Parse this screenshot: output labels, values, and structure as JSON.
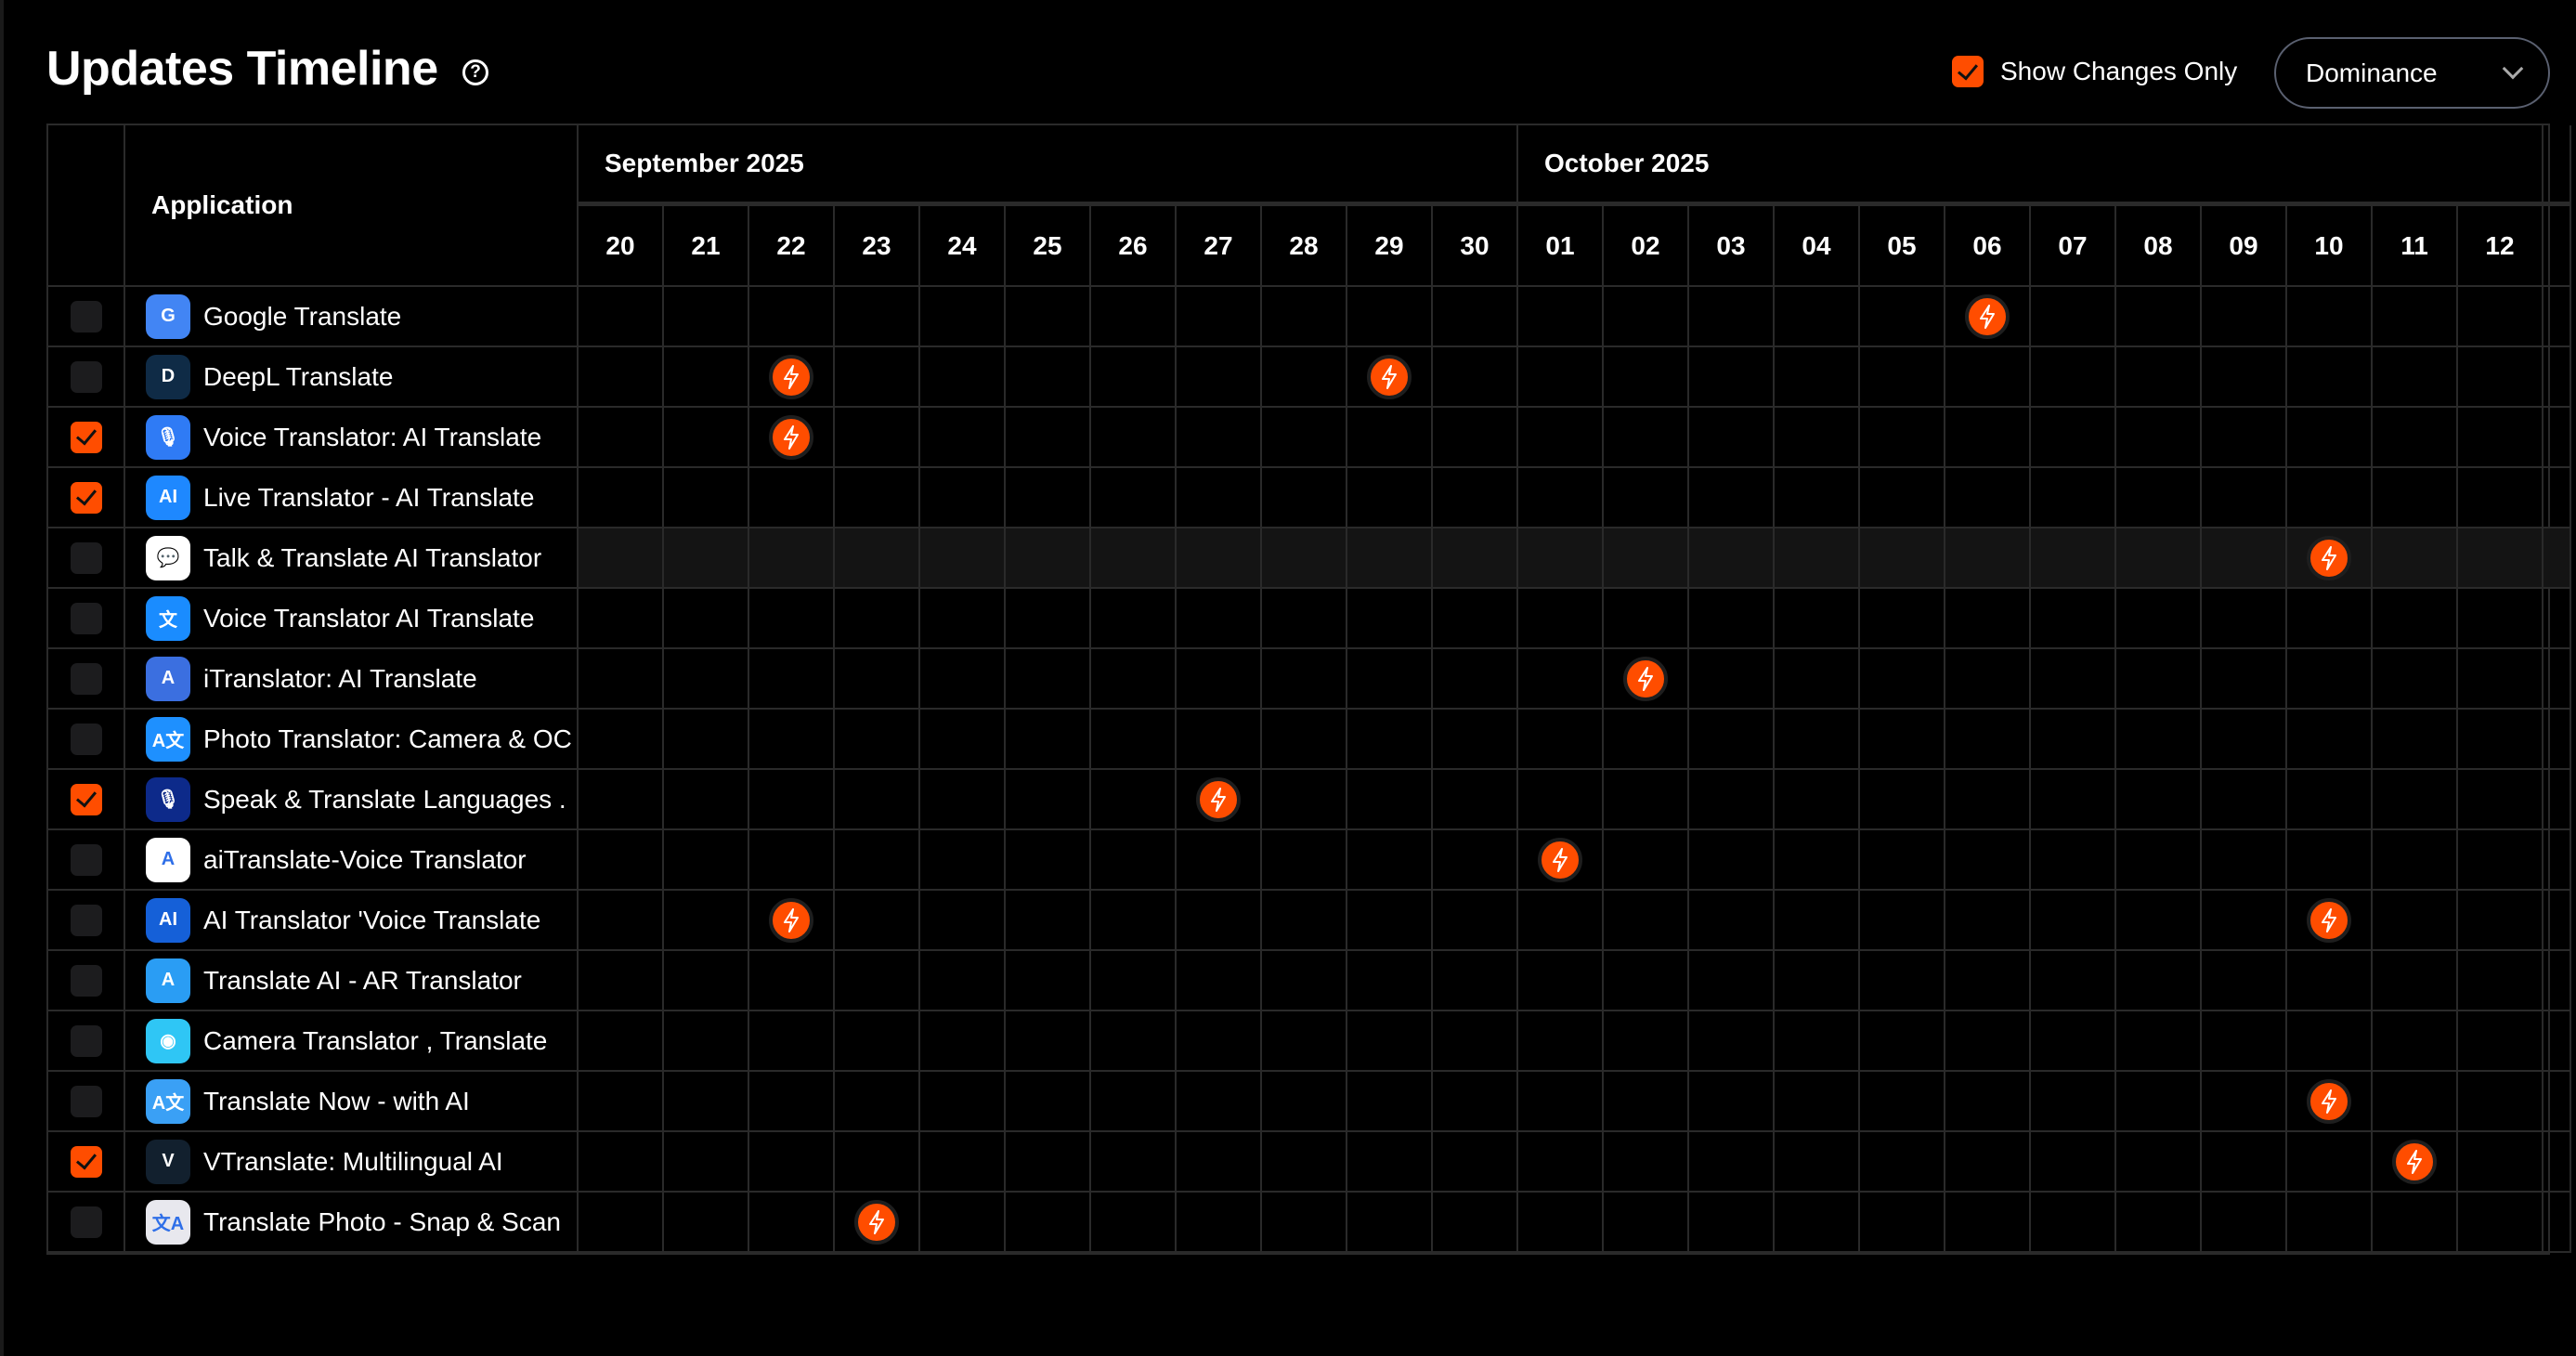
{
  "header": {
    "title": "Updates Timeline",
    "help_icon": "?",
    "show_changes_label": "Show Changes Only",
    "show_changes_checked": true,
    "dropdown_value": "Dominance"
  },
  "colors": {
    "accent": "#ff4d00",
    "grid": "#2a2a2a"
  },
  "table": {
    "app_header": "Application",
    "months": [
      {
        "label": "September 2025",
        "days": 11
      },
      {
        "label": "October 2025",
        "days": 12
      }
    ],
    "days": [
      "20",
      "21",
      "22",
      "23",
      "24",
      "25",
      "26",
      "27",
      "28",
      "29",
      "30",
      "01",
      "02",
      "03",
      "04",
      "05",
      "06",
      "07",
      "08",
      "09",
      "10",
      "11",
      "12"
    ],
    "rows": [
      {
        "name": "Google Translate",
        "checked": false,
        "icon": "G",
        "color": "#4285f4",
        "updates": [
          "06"
        ],
        "month": "Oct"
      },
      {
        "name": "DeepL Translate",
        "checked": false,
        "icon": "D",
        "color": "#0f2b46",
        "updates": [
          "22",
          "29"
        ],
        "month": "Sep"
      },
      {
        "name": "Voice Translator: AI Translate",
        "checked": true,
        "icon": "🎙",
        "color": "#2f7bf5",
        "updates": [
          "22"
        ],
        "month": "Sep"
      },
      {
        "name": "Live Translator - AI Translate",
        "checked": true,
        "icon": "AI",
        "color": "#1e88ff",
        "updates": [],
        "month": ""
      },
      {
        "name": "Talk & Translate AI Translator",
        "checked": false,
        "icon": "💬",
        "color": "#ffffff",
        "updates": [
          "10"
        ],
        "month": "Oct",
        "highlight": true
      },
      {
        "name": "Voice Translator AI Translate",
        "checked": false,
        "icon": "文",
        "color": "#1a8cff",
        "updates": [],
        "month": ""
      },
      {
        "name": "iTranslator: AI Translate",
        "checked": false,
        "icon": "A",
        "color": "#3b6fe0",
        "updates": [
          "02"
        ],
        "month": "Oct"
      },
      {
        "name": "Photo Translator: Camera & OC",
        "checked": false,
        "icon": "A文",
        "color": "#1e90ff",
        "updates": [],
        "month": ""
      },
      {
        "name": "Speak & Translate Languages .",
        "checked": true,
        "icon": "🎙",
        "color": "#0d2a8a",
        "updates": [
          "27"
        ],
        "month": "Sep"
      },
      {
        "name": "aiTranslate-Voice Translator",
        "checked": false,
        "icon": "A",
        "color": "#ffffff",
        "updates": [
          "01"
        ],
        "month": "Oct"
      },
      {
        "name": "AI Translator 'Voice Translate",
        "checked": false,
        "icon": "AI",
        "color": "#1560d8",
        "updates": [
          "22",
          "10"
        ],
        "month": "Sep/Oct"
      },
      {
        "name": "Translate AI - AR Translator",
        "checked": false,
        "icon": "A",
        "color": "#2a9df4",
        "updates": [],
        "month": ""
      },
      {
        "name": "Camera Translator , Translate",
        "checked": false,
        "icon": "◉",
        "color": "#2fc6f5",
        "updates": [],
        "month": ""
      },
      {
        "name": "Translate Now - with AI",
        "checked": false,
        "icon": "A文",
        "color": "#3aa0f5",
        "updates": [
          "10"
        ],
        "month": "Oct"
      },
      {
        "name": "VTranslate: Multilingual AI",
        "checked": true,
        "icon": "V",
        "color": "#12202e",
        "updates": [
          "11"
        ],
        "month": "Oct"
      },
      {
        "name": "Translate Photo - Snap & Scan",
        "checked": false,
        "icon": "文A",
        "color": "#e8e8ee",
        "updates": [
          "23"
        ],
        "month": "Sep"
      }
    ],
    "update_cells": [
      [
        16
      ],
      [
        2,
        9
      ],
      [
        2
      ],
      [],
      [
        20
      ],
      [],
      [
        12
      ],
      [],
      [
        7
      ],
      [
        11
      ],
      [
        2,
        20
      ],
      [],
      [],
      [
        20
      ],
      [
        21
      ],
      [
        3
      ]
    ]
  }
}
